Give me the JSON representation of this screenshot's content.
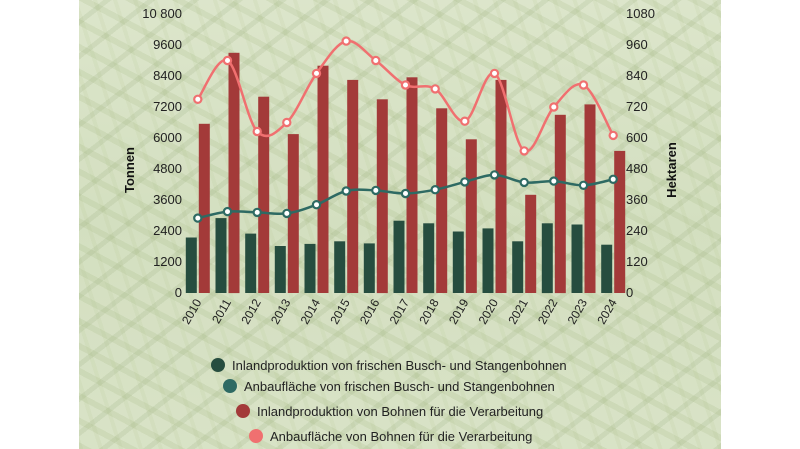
{
  "chart_data": {
    "type": "bar",
    "categories": [
      "2010",
      "2011",
      "2012",
      "2013",
      "2014",
      "2015",
      "2016",
      "2017",
      "2018",
      "2019",
      "2020",
      "2021",
      "2022",
      "2023",
      "2024"
    ],
    "ylabel": "Tonnen",
    "y2label": "Hektaren",
    "ylim": [
      0,
      10800
    ],
    "y2lim": [
      0,
      1080
    ],
    "yticks": [
      "0",
      "1200",
      "2400",
      "3600",
      "4800",
      "6000",
      "7200",
      "8400",
      "9600",
      "10 800"
    ],
    "y2ticks": [
      "0",
      "120",
      "240",
      "360",
      "480",
      "600",
      "720",
      "840",
      "960",
      "1080"
    ],
    "grid": false,
    "legend_position": "bottom",
    "series": [
      {
        "name": "Inlandproduktion von frischen Busch- und Stangenbohnen",
        "type": "bar",
        "axis": "left",
        "color": "#264d3f",
        "values": [
          2150,
          2900,
          2300,
          1820,
          1900,
          2000,
          1920,
          2800,
          2700,
          2380,
          2500,
          2000,
          2700,
          2650,
          1870
        ]
      },
      {
        "name": "Inlandproduktion von Bohnen für die Verarbeitung",
        "type": "bar",
        "axis": "left",
        "color": "#a33a39",
        "values": [
          6550,
          9300,
          7600,
          6150,
          8800,
          8250,
          7500,
          8350,
          7150,
          5950,
          8250,
          3800,
          6900,
          7300,
          5500
        ]
      },
      {
        "name": "Anbaufläche von frischen Busch- und Stangenbohnen",
        "type": "line",
        "axis": "right",
        "color": "#2e6a63",
        "values": [
          290,
          315,
          312,
          308,
          342,
          395,
          397,
          385,
          400,
          430,
          457,
          428,
          433,
          417,
          440
        ]
      },
      {
        "name": "Anbaufläche von Bohnen für die Verarbeitung",
        "type": "line",
        "axis": "right",
        "color": "#f07070",
        "values": [
          750,
          900,
          625,
          660,
          850,
          975,
          900,
          805,
          790,
          665,
          850,
          550,
          720,
          805,
          610
        ]
      }
    ],
    "legend_order": [
      0,
      2,
      1,
      3
    ]
  },
  "colors": {
    "tick_text": "#222222"
  }
}
